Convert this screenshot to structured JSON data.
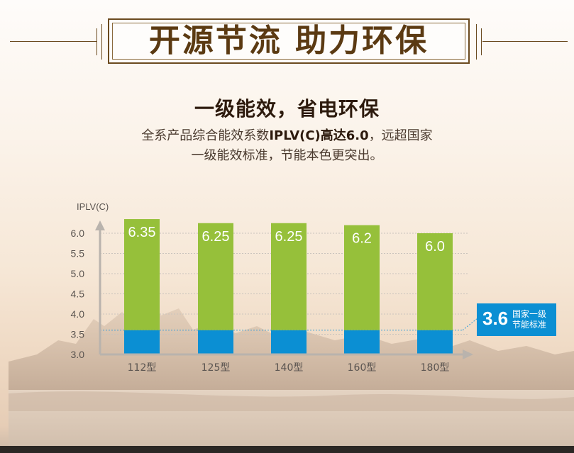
{
  "header": {
    "title": "开源节流 助力环保"
  },
  "section": {
    "title": "一级能效，省电环保",
    "desc_line1_prefix": "全系产品综合能效系数",
    "desc_line1_bold": "IPLV(C)高达6.0",
    "desc_line1_suffix": "，远超国家",
    "desc_line2": "一级能效标准，节能本色更突出。"
  },
  "colors": {
    "bar_green": "#96c03a",
    "bar_blue": "#0b8fd3",
    "title_brown": "#5b3a12",
    "axis": "#b9b3ad"
  },
  "chart_data": {
    "type": "bar",
    "ylabel": "IPLV(C)",
    "ylim": [
      3.0,
      6.0
    ],
    "yticks": [
      "6.0",
      "5.5",
      "5.0",
      "4.5",
      "4.0",
      "3.5",
      "3.0"
    ],
    "categories": [
      "112型",
      "125型",
      "140型",
      "160型",
      "180型"
    ],
    "values": [
      6.35,
      6.25,
      6.25,
      6.2,
      6.0
    ],
    "value_labels": [
      "6.35",
      "6.25",
      "6.25",
      "6.2",
      "6.0"
    ],
    "baseline": 3.6,
    "grid": true,
    "reference": {
      "value": "3.6",
      "label_line1": "国家一级",
      "label_line2": "节能标准"
    }
  }
}
